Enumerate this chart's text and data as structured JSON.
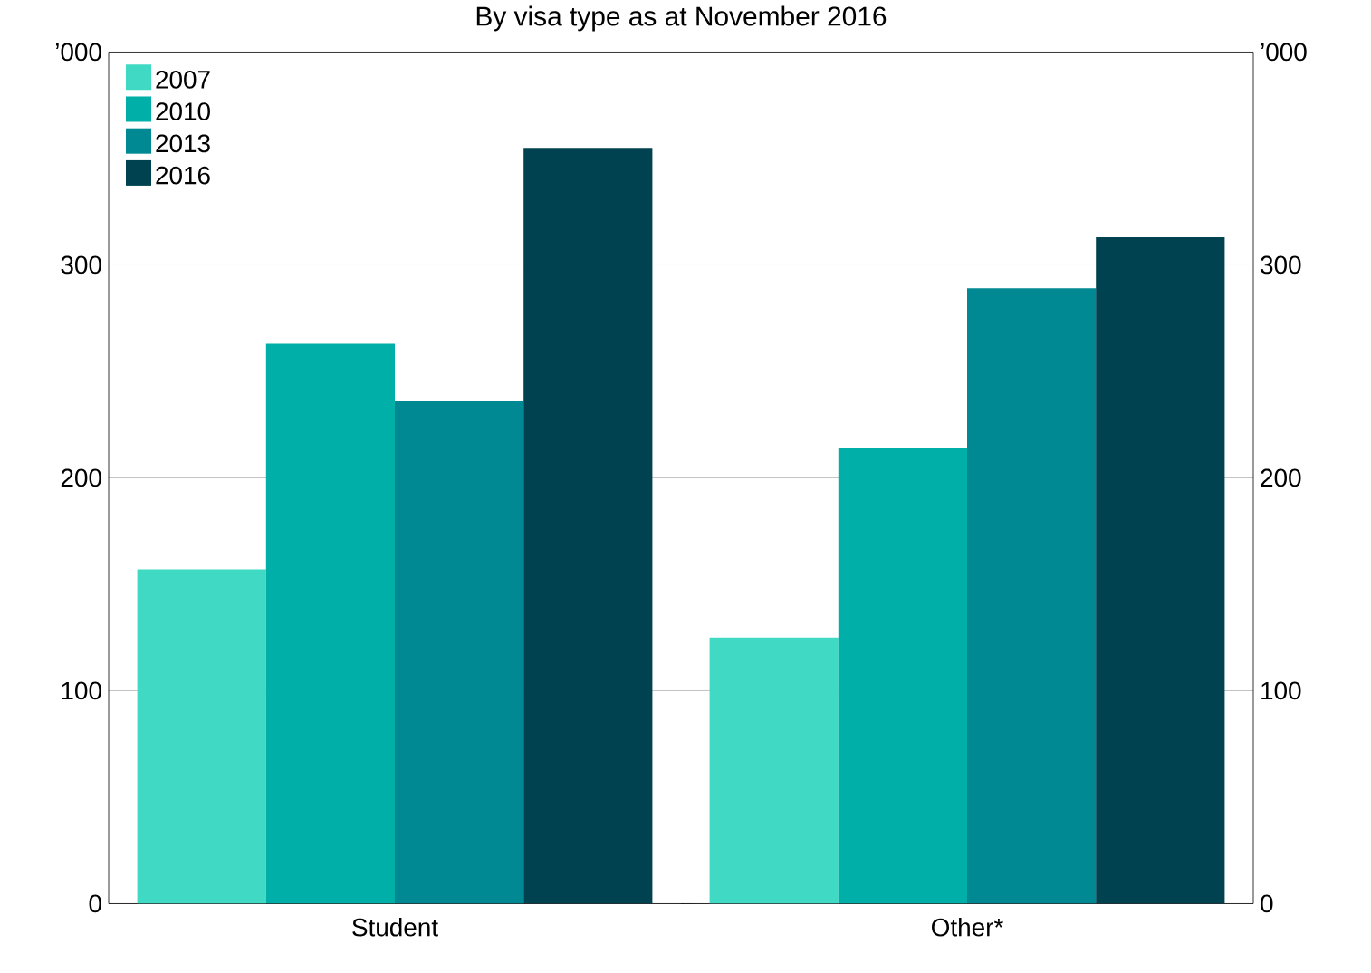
{
  "chart_data": {
    "type": "bar",
    "subtitle": "By visa type as at November 2016",
    "categories": [
      "Student",
      "Other*"
    ],
    "series": [
      {
        "name": "2007",
        "color": "#40d9c4",
        "values": [
          157,
          125
        ]
      },
      {
        "name": "2010",
        "color": "#00b0a8",
        "values": [
          263,
          214
        ]
      },
      {
        "name": "2013",
        "color": "#008893",
        "values": [
          236,
          289
        ]
      },
      {
        "name": "2016",
        "color": "#014250",
        "values": [
          355,
          313
        ]
      }
    ],
    "ylabel": "’000",
    "y2label": "’000",
    "ylim": [
      0,
      400
    ],
    "yticks": [
      0,
      100,
      200,
      300
    ],
    "y2lim": [
      0,
      400
    ],
    "y2ticks": [
      0,
      100,
      200,
      300
    ],
    "grid": "y",
    "legend": "top left"
  }
}
